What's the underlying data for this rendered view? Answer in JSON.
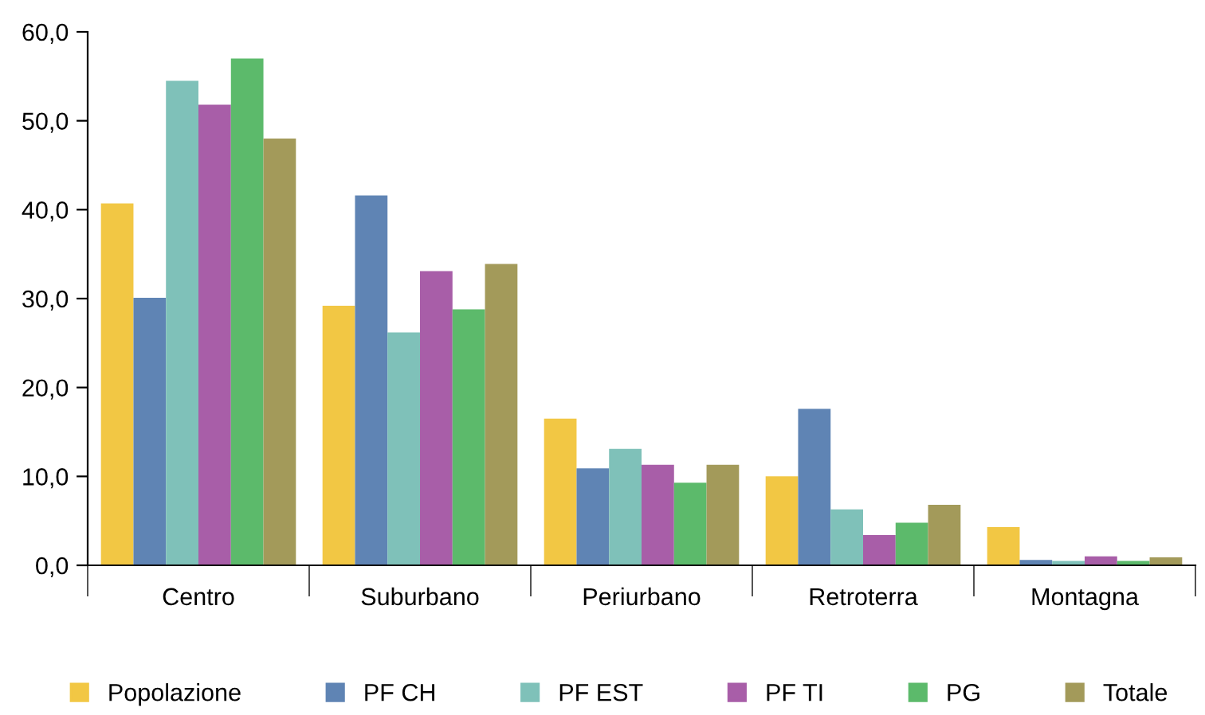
{
  "chart_data": {
    "type": "bar",
    "categories": [
      "Centro",
      "Suburbano",
      "Periurbano",
      "Retroterra",
      "Montagna"
    ],
    "series": [
      {
        "name": "Popolazione",
        "color": "#f2c744",
        "values": [
          40.7,
          29.2,
          16.5,
          10.0,
          4.3
        ]
      },
      {
        "name": "PF CH",
        "color": "#5f84b4",
        "values": [
          30.1,
          41.6,
          10.9,
          17.6,
          0.6
        ]
      },
      {
        "name": "PF EST",
        "color": "#7fc1b9",
        "values": [
          54.5,
          26.2,
          13.1,
          6.3,
          0.5
        ]
      },
      {
        "name": "PF TI",
        "color": "#a85ea8",
        "values": [
          51.8,
          33.1,
          11.3,
          3.4,
          1.0
        ]
      },
      {
        "name": "PG",
        "color": "#5cba6b",
        "values": [
          57.0,
          28.8,
          9.3,
          4.8,
          0.5
        ]
      },
      {
        "name": "Totale",
        "color": "#a39a5a",
        "values": [
          48.0,
          33.9,
          11.3,
          6.8,
          0.9
        ]
      }
    ],
    "ylim": [
      0,
      60
    ],
    "yticks": [
      {
        "value": 0,
        "label": "0,0"
      },
      {
        "value": 10,
        "label": "10,0"
      },
      {
        "value": 20,
        "label": "20,0"
      },
      {
        "value": 30,
        "label": "30,0"
      },
      {
        "value": 40,
        "label": "40,0"
      },
      {
        "value": 50,
        "label": "50,0"
      },
      {
        "value": 60,
        "label": "60,0"
      }
    ],
    "grid": false,
    "legend": "bottom"
  }
}
